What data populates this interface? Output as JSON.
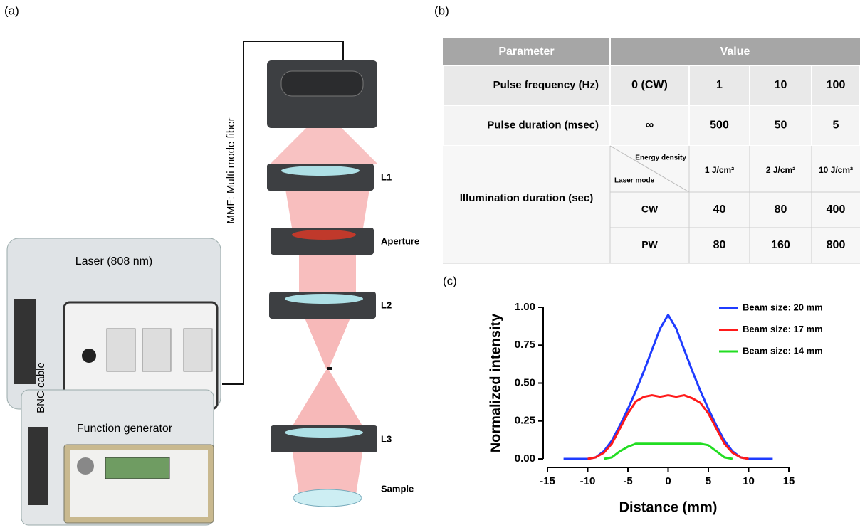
{
  "panel_labels": [
    "(a)",
    "(b)",
    "(c)"
  ],
  "setup": {
    "laser": "Laser (808 nm)",
    "function_generator": "Function generator",
    "bnc_cable": "BNC cable",
    "fiber": "MMF: Multi mode fiber",
    "optics": [
      "L1",
      "Aperture",
      "L2",
      "L3",
      "Sample"
    ]
  },
  "table": {
    "header": [
      "Parameter",
      "Value"
    ],
    "rows": [
      {
        "label": "Pulse frequency (Hz)",
        "cells": [
          "0 (CW)",
          "1",
          "10",
          "100"
        ]
      },
      {
        "label": "Pulse duration (msec)",
        "cells": [
          "∞",
          "500",
          "50",
          "5"
        ]
      }
    ],
    "illumination": {
      "label": "Illumination duration (sec)",
      "corner_top": "Energy density",
      "corner_bottom": "Laser mode",
      "columns": [
        "1 J/cm²",
        "2 J/cm²",
        "10 J/cm²"
      ],
      "rows": [
        {
          "mode": "CW",
          "values": [
            "40",
            "80",
            "400"
          ]
        },
        {
          "mode": "PW",
          "values": [
            "80",
            "160",
            "800"
          ]
        }
      ]
    }
  },
  "chart_data": {
    "type": "line",
    "xlabel": "Distance (mm)",
    "ylabel": "Normalized intensity",
    "x": [
      -13,
      -12,
      -11,
      -10,
      -9,
      -8,
      -7,
      -6,
      -5,
      -4,
      -3,
      -2,
      -1,
      0,
      1,
      2,
      3,
      4,
      5,
      6,
      7,
      8,
      9,
      10,
      11,
      12,
      13
    ],
    "series": [
      {
        "name": "Beam size: 20 mm",
        "color": "#1f3cff",
        "values": [
          0,
          0,
          0,
          0,
          0.01,
          0.05,
          0.12,
          0.22,
          0.33,
          0.45,
          0.58,
          0.72,
          0.86,
          0.95,
          0.86,
          0.72,
          0.58,
          0.45,
          0.33,
          0.22,
          0.12,
          0.05,
          0.01,
          0,
          0,
          0,
          0
        ]
      },
      {
        "name": "Beam size: 17 mm",
        "color": "#ff1a1a",
        "values": [
          null,
          null,
          null,
          0,
          0.01,
          0.04,
          0.1,
          0.2,
          0.3,
          0.38,
          0.41,
          0.42,
          0.41,
          0.42,
          0.41,
          0.42,
          0.4,
          0.37,
          0.3,
          0.2,
          0.1,
          0.04,
          0.01,
          0,
          null,
          null,
          null
        ]
      },
      {
        "name": "Beam size: 14 mm",
        "color": "#22dd22",
        "values": [
          null,
          null,
          null,
          null,
          null,
          0,
          0.01,
          0.05,
          0.08,
          0.1,
          0.1,
          0.1,
          0.1,
          0.1,
          0.1,
          0.1,
          0.1,
          0.1,
          0.09,
          0.05,
          0.01,
          0,
          null,
          null,
          null,
          null,
          null
        ]
      }
    ],
    "xlim": [
      -15,
      15
    ],
    "xticks": [
      -15,
      -10,
      -5,
      0,
      5,
      10,
      15
    ],
    "ylim": [
      0,
      1
    ],
    "yticks": [
      {
        "value": 0,
        "label": "0.00"
      },
      {
        "value": 0.25,
        "label": "0.25"
      },
      {
        "value": 0.5,
        "label": "0.50"
      },
      {
        "value": 0.75,
        "label": "0.75"
      },
      {
        "value": 1,
        "label": "1.00"
      }
    ],
    "legend": "upper right"
  }
}
